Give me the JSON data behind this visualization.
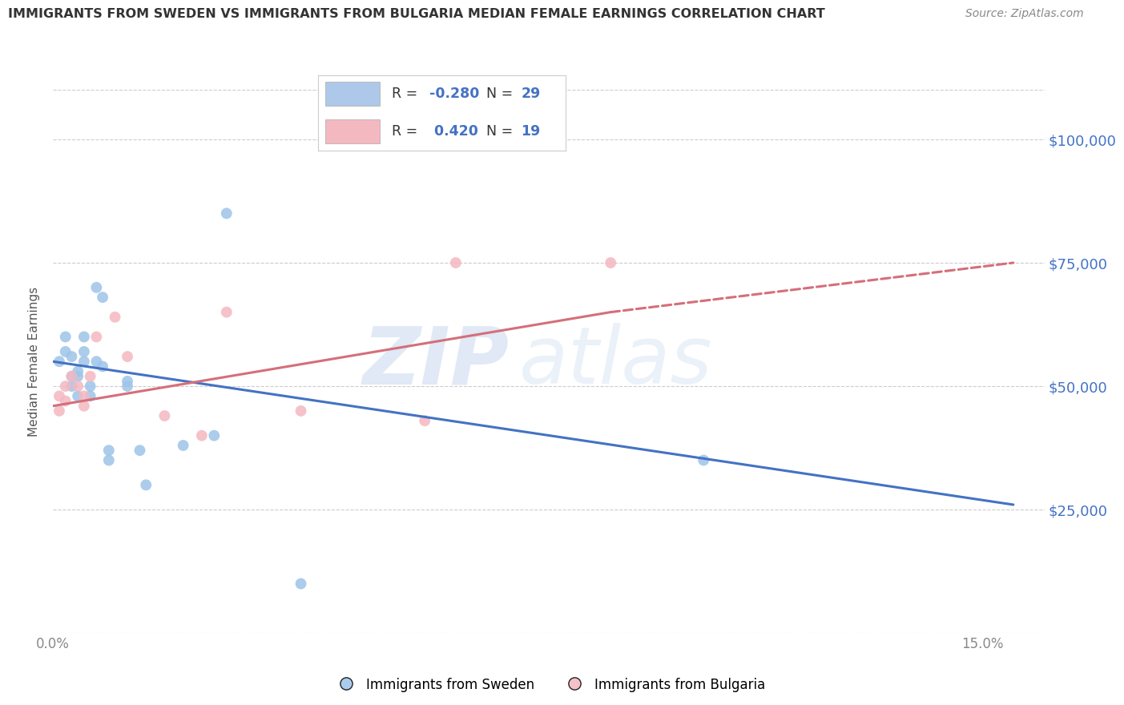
{
  "title": "IMMIGRANTS FROM SWEDEN VS IMMIGRANTS FROM BULGARIA MEDIAN FEMALE EARNINGS CORRELATION CHART",
  "source": "Source: ZipAtlas.com",
  "ylabel": "Median Female Earnings",
  "ytick_labels": [
    "$25,000",
    "$50,000",
    "$75,000",
    "$100,000"
  ],
  "ytick_values": [
    25000,
    50000,
    75000,
    100000
  ],
  "ylim": [
    0,
    110000
  ],
  "xlim": [
    0.0,
    0.16
  ],
  "background_color": "#ffffff",
  "watermark_zip": "ZIP",
  "watermark_atlas": "atlas",
  "legend": {
    "sweden": {
      "R": "-0.280",
      "N": "29",
      "color": "#adc8e8"
    },
    "bulgaria": {
      "R": "0.420",
      "N": "19",
      "color": "#f4b8c1"
    }
  },
  "sweden_scatter": {
    "x": [
      0.001,
      0.002,
      0.002,
      0.003,
      0.003,
      0.003,
      0.004,
      0.004,
      0.004,
      0.005,
      0.005,
      0.005,
      0.006,
      0.006,
      0.007,
      0.007,
      0.008,
      0.008,
      0.009,
      0.009,
      0.012,
      0.012,
      0.014,
      0.015,
      0.021,
      0.026,
      0.028,
      0.105,
      0.04
    ],
    "y": [
      55000,
      60000,
      57000,
      56000,
      52000,
      50000,
      53000,
      52000,
      48000,
      55000,
      57000,
      60000,
      50000,
      48000,
      70000,
      55000,
      54000,
      68000,
      35000,
      37000,
      50000,
      51000,
      37000,
      30000,
      38000,
      40000,
      85000,
      35000,
      10000
    ],
    "color": "#9ec4e8",
    "size": 100
  },
  "bulgaria_scatter": {
    "x": [
      0.001,
      0.001,
      0.002,
      0.002,
      0.003,
      0.004,
      0.005,
      0.005,
      0.006,
      0.007,
      0.01,
      0.012,
      0.018,
      0.024,
      0.028,
      0.04,
      0.06,
      0.065,
      0.09
    ],
    "y": [
      45000,
      48000,
      50000,
      47000,
      52000,
      50000,
      46000,
      48000,
      52000,
      60000,
      64000,
      56000,
      44000,
      40000,
      65000,
      45000,
      43000,
      75000,
      75000
    ],
    "color": "#f4b8c1",
    "size": 100
  },
  "sweden_line": {
    "x0": 0.0,
    "x1": 0.155,
    "y0": 55000,
    "y1": 26000,
    "color": "#4472c4",
    "linewidth": 2.2
  },
  "bulgaria_line_solid": {
    "x0": 0.0,
    "x1": 0.09,
    "y0": 46000,
    "y1": 65000,
    "color": "#d46f7a",
    "linewidth": 2.2
  },
  "bulgaria_line_dashed": {
    "x0": 0.09,
    "x1": 0.155,
    "y0": 65000,
    "y1": 75000,
    "color": "#d46f7a",
    "linewidth": 2.2
  },
  "grid_color": "#cccccc",
  "axis_color": "#4472c4",
  "tick_color": "#888888",
  "title_color": "#333333",
  "source_color": "#888888"
}
